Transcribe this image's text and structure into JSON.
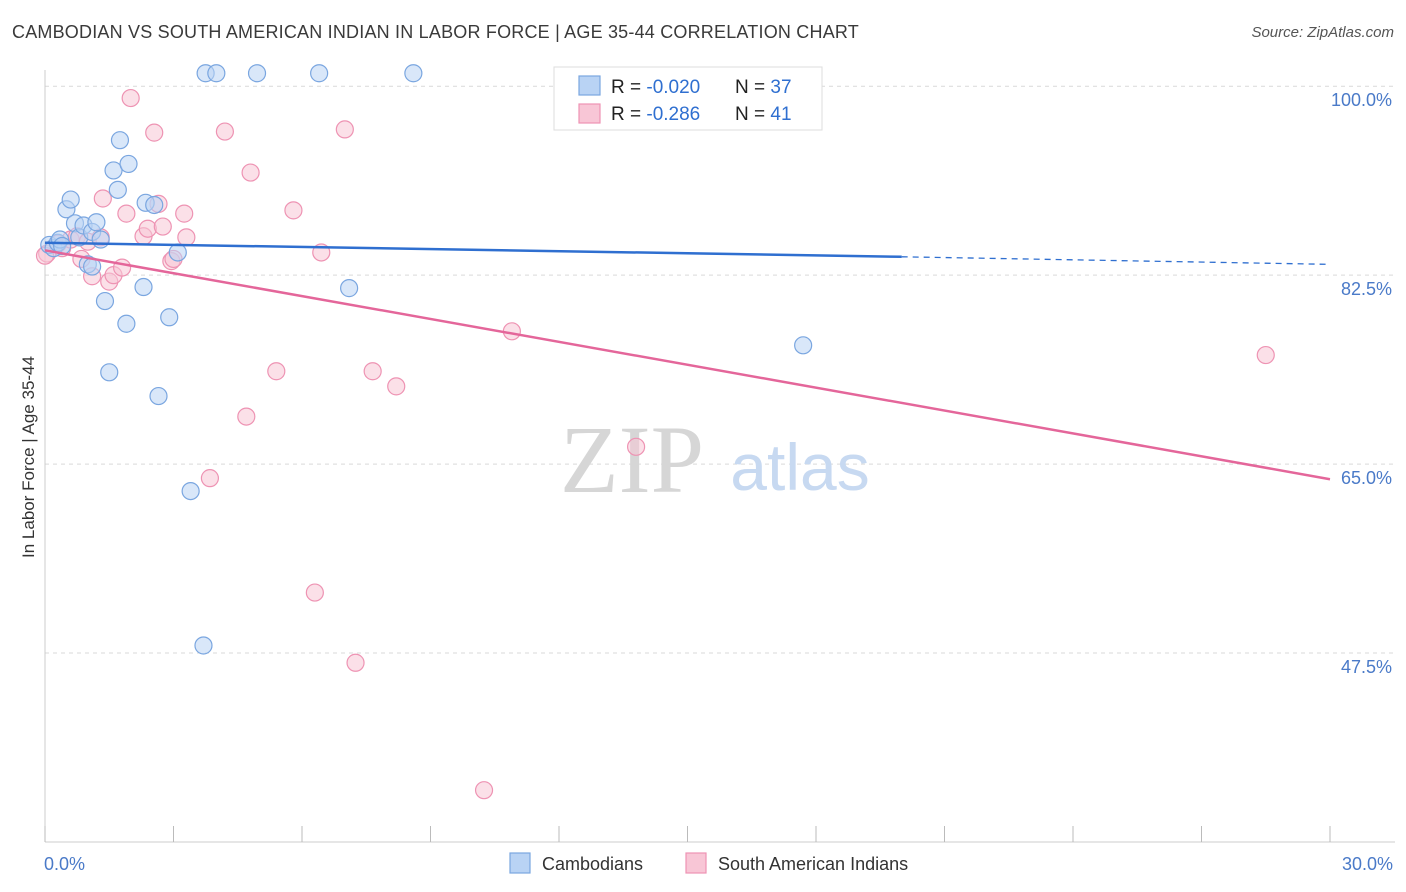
{
  "title": "CAMBODIAN VS SOUTH AMERICAN INDIAN IN LABOR FORCE | AGE 35-44 CORRELATION CHART",
  "source": "Source: ZipAtlas.com",
  "watermark": {
    "zip": "ZIP",
    "atlas": "atlas"
  },
  "legend_box": {
    "rows": [
      {
        "r_label": "R = ",
        "r_value": "-0.020",
        "n_label": "N = ",
        "n_value": "37",
        "color": "#6f9ee0",
        "fill": "#b9d3f4"
      },
      {
        "r_label": "R = ",
        "r_value": "-0.286",
        "n_label": "N = ",
        "n_value": "41",
        "color": "#e9749d",
        "fill": "#f8c6d6"
      }
    ]
  },
  "colors": {
    "blue_line": "#2f6fd0",
    "pink_line": "#e4669a",
    "blue_point_stroke": "#7aa6e0",
    "blue_point_fill": "#b9d3f4",
    "pink_point_stroke": "#ee93b3",
    "pink_point_fill": "#f8c6d6",
    "tick_label": "#4a7ac8",
    "grid": "#d9d9d9"
  },
  "chart_data": {
    "type": "scatter",
    "title": "CAMBODIAN VS SOUTH AMERICAN INDIAN IN LABOR FORCE | AGE 35-44 CORRELATION CHART",
    "xlabel": "",
    "ylabel": "In Labor Force | Age 35-44",
    "xlim": [
      0,
      30
    ],
    "ylim": [
      30,
      101.5
    ],
    "x_tick_labels": [
      {
        "value": 0,
        "label": "0.0%"
      },
      {
        "value": 30,
        "label": "30.0%"
      }
    ],
    "x_minor_ticks": [
      0,
      3,
      6,
      9,
      12,
      15,
      18,
      21,
      24,
      27,
      30
    ],
    "y_ticks": [
      {
        "value": 100,
        "label": "100.0%"
      },
      {
        "value": 82.5,
        "label": "82.5%"
      },
      {
        "value": 65,
        "label": "65.0%"
      },
      {
        "value": 47.5,
        "label": "47.5%"
      }
    ],
    "grid": true,
    "legend_position": "bottom-center",
    "series": [
      {
        "name": "Cambodians",
        "color": "#7aa6e0",
        "trend": {
          "x": [
            0,
            20,
            30
          ],
          "y": [
            85.5,
            84.2,
            83.5
          ],
          "solid_until": 20
        },
        "points": [
          {
            "x": 0.1,
            "y": 85.3
          },
          {
            "x": 0.2,
            "y": 85.0
          },
          {
            "x": 0.3,
            "y": 85.5
          },
          {
            "x": 0.35,
            "y": 85.8
          },
          {
            "x": 0.4,
            "y": 85.2
          },
          {
            "x": 0.5,
            "y": 88.6
          },
          {
            "x": 0.6,
            "y": 89.5
          },
          {
            "x": 0.7,
            "y": 87.3
          },
          {
            "x": 0.8,
            "y": 86.0
          },
          {
            "x": 0.9,
            "y": 87.1
          },
          {
            "x": 1.0,
            "y": 83.5
          },
          {
            "x": 1.1,
            "y": 86.5
          },
          {
            "x": 1.1,
            "y": 83.3
          },
          {
            "x": 1.2,
            "y": 87.4
          },
          {
            "x": 1.3,
            "y": 85.8
          },
          {
            "x": 1.4,
            "y": 80.1
          },
          {
            "x": 1.5,
            "y": 73.5
          },
          {
            "x": 1.6,
            "y": 92.2
          },
          {
            "x": 1.7,
            "y": 90.4
          },
          {
            "x": 1.75,
            "y": 95.0
          },
          {
            "x": 1.9,
            "y": 78.0
          },
          {
            "x": 1.95,
            "y": 92.8
          },
          {
            "x": 2.3,
            "y": 81.4
          },
          {
            "x": 2.35,
            "y": 89.2
          },
          {
            "x": 2.55,
            "y": 89.0
          },
          {
            "x": 2.65,
            "y": 71.3
          },
          {
            "x": 2.9,
            "y": 78.6
          },
          {
            "x": 3.1,
            "y": 84.6
          },
          {
            "x": 3.4,
            "y": 62.5
          },
          {
            "x": 3.7,
            "y": 48.2
          },
          {
            "x": 3.75,
            "y": 101.2
          },
          {
            "x": 4.0,
            "y": 101.2
          },
          {
            "x": 4.95,
            "y": 101.2
          },
          {
            "x": 6.4,
            "y": 101.2
          },
          {
            "x": 7.1,
            "y": 81.3
          },
          {
            "x": 8.6,
            "y": 101.2
          },
          {
            "x": 17.7,
            "y": 76.0
          }
        ]
      },
      {
        "name": "South American Indians",
        "color": "#ee93b3",
        "trend": {
          "x": [
            0,
            30
          ],
          "y": [
            84.8,
            63.6
          ]
        },
        "points": [
          {
            "x": 0.05,
            "y": 84.5
          },
          {
            "x": 0.3,
            "y": 85.4
          },
          {
            "x": 0.4,
            "y": 85.0
          },
          {
            "x": 0.6,
            "y": 85.8
          },
          {
            "x": 0.75,
            "y": 86.1
          },
          {
            "x": 0.85,
            "y": 84.0
          },
          {
            "x": 1.0,
            "y": 85.6
          },
          {
            "x": 1.1,
            "y": 82.4
          },
          {
            "x": 1.3,
            "y": 86.0
          },
          {
            "x": 1.35,
            "y": 89.6
          },
          {
            "x": 1.5,
            "y": 81.9
          },
          {
            "x": 1.6,
            "y": 82.5
          },
          {
            "x": 1.8,
            "y": 83.2
          },
          {
            "x": 1.9,
            "y": 88.2
          },
          {
            "x": 2.0,
            "y": 98.9
          },
          {
            "x": 2.3,
            "y": 86.1
          },
          {
            "x": 2.4,
            "y": 86.8
          },
          {
            "x": 2.55,
            "y": 95.7
          },
          {
            "x": 2.65,
            "y": 89.1
          },
          {
            "x": 2.75,
            "y": 87.0
          },
          {
            "x": 2.95,
            "y": 83.8
          },
          {
            "x": 3.0,
            "y": 84.0
          },
          {
            "x": 3.25,
            "y": 88.2
          },
          {
            "x": 3.3,
            "y": 86.0
          },
          {
            "x": 3.85,
            "y": 63.7
          },
          {
            "x": 4.2,
            "y": 95.8
          },
          {
            "x": 4.7,
            "y": 69.4
          },
          {
            "x": 4.8,
            "y": 92.0
          },
          {
            "x": 5.4,
            "y": 73.6
          },
          {
            "x": 5.8,
            "y": 88.5
          },
          {
            "x": 6.3,
            "y": 53.1
          },
          {
            "x": 6.45,
            "y": 84.6
          },
          {
            "x": 7.0,
            "y": 96.0
          },
          {
            "x": 7.25,
            "y": 46.6
          },
          {
            "x": 7.65,
            "y": 73.6
          },
          {
            "x": 8.2,
            "y": 72.2
          },
          {
            "x": 10.25,
            "y": 34.8
          },
          {
            "x": 10.9,
            "y": 77.3
          },
          {
            "x": 13.8,
            "y": 66.6
          },
          {
            "x": 28.5,
            "y": 75.1
          },
          {
            "x": 0.0,
            "y": 84.3
          }
        ]
      }
    ]
  },
  "bottom_legend": [
    {
      "label": "Cambodians",
      "fill": "#b9d3f4",
      "stroke": "#7aa6e0"
    },
    {
      "label": "South American Indians",
      "fill": "#f8c6d6",
      "stroke": "#ee93b3"
    }
  ]
}
